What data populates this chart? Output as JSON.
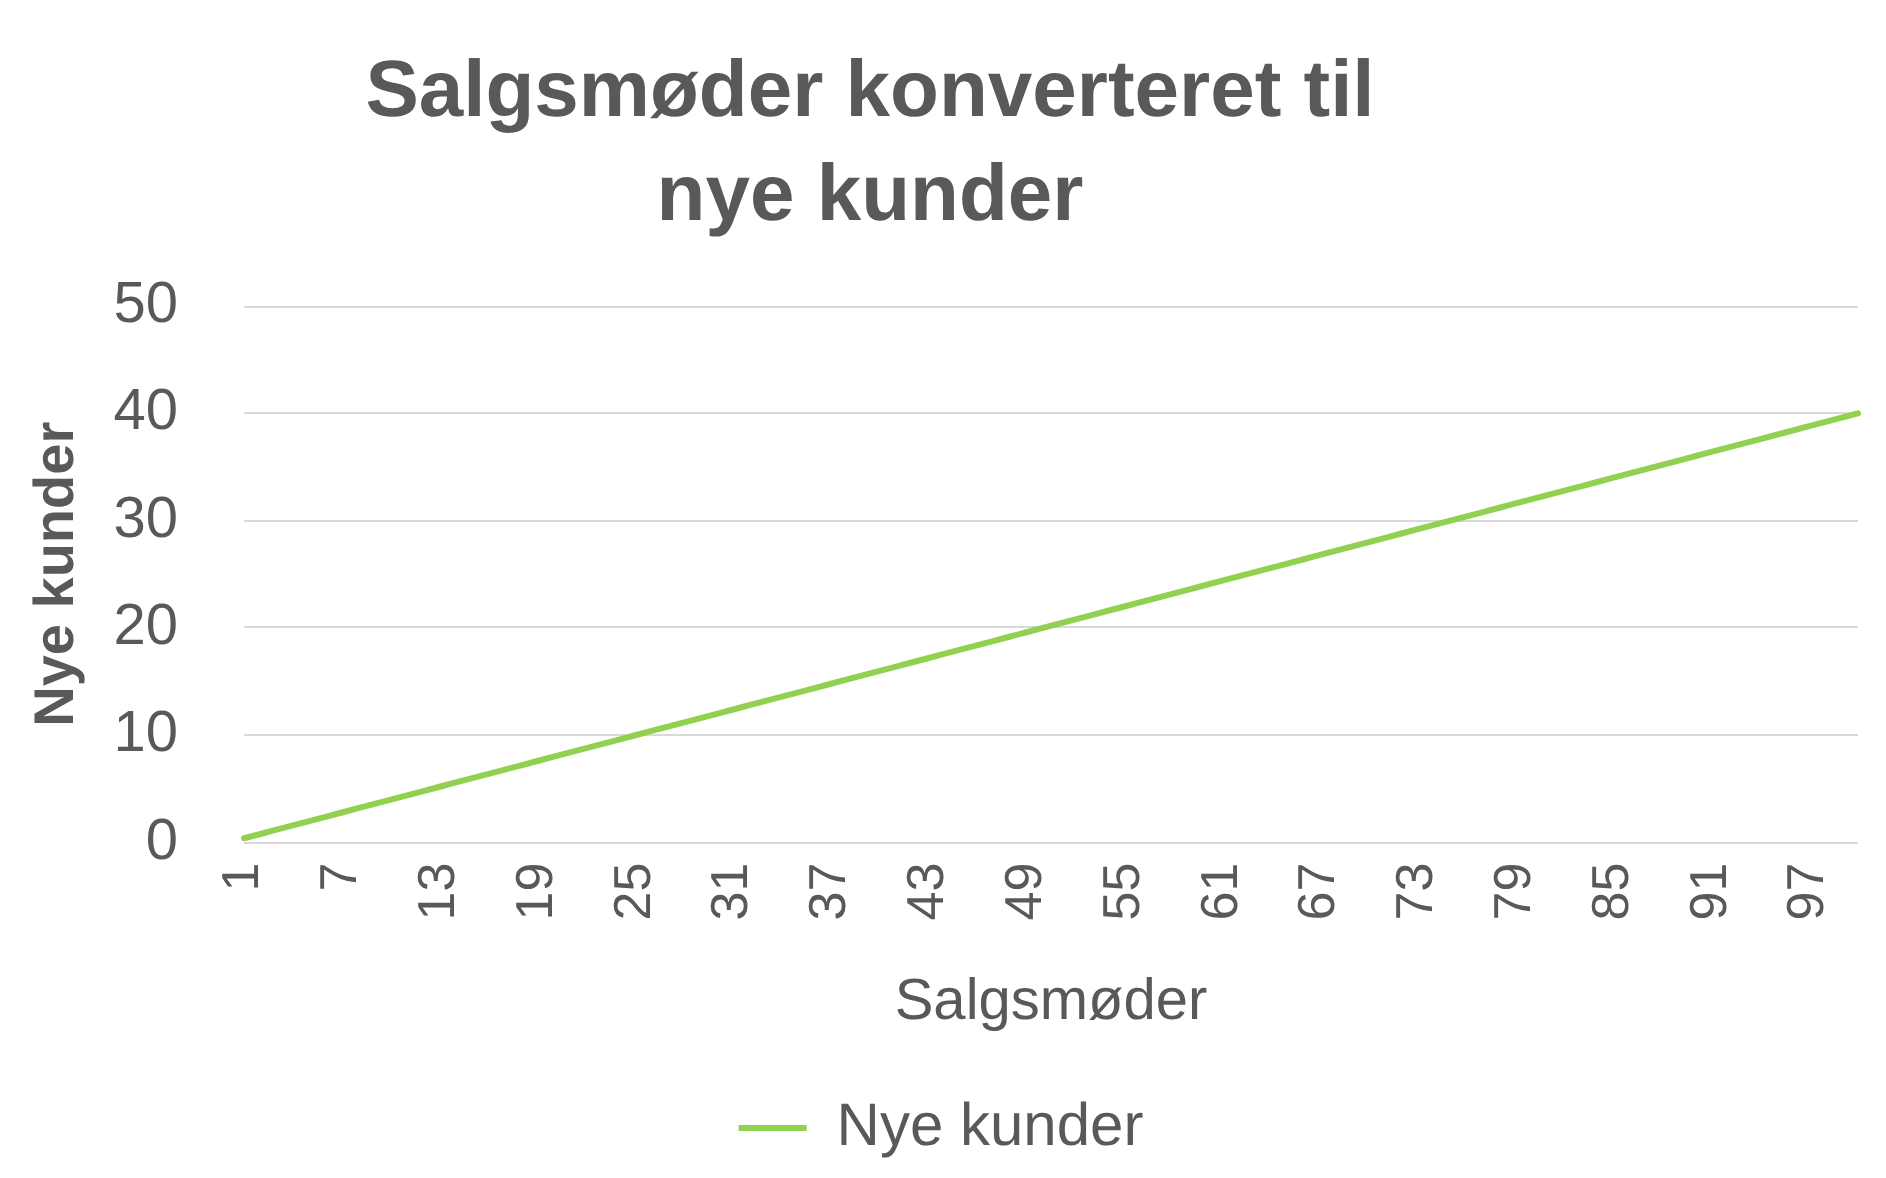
{
  "chart_data": {
    "type": "line",
    "title": "Salgsmøder konverteret til nye kunder",
    "xlabel": "Salgsmøder",
    "ylabel": "Nye kunder",
    "categories": [
      "1",
      null,
      null,
      null,
      null,
      null,
      "7",
      null,
      null,
      null,
      null,
      null,
      "13",
      null,
      null,
      null,
      null,
      null,
      "19",
      null,
      null,
      null,
      null,
      null,
      "25",
      null,
      null,
      null,
      null,
      null,
      "31",
      null,
      null,
      null,
      null,
      null,
      "37",
      null,
      null,
      null,
      null,
      null,
      "43",
      null,
      null,
      null,
      null,
      null,
      "49",
      null,
      null,
      null,
      null,
      null,
      "55",
      null,
      null,
      null,
      null,
      null,
      "61",
      null,
      null,
      null,
      null,
      null,
      "67",
      null,
      null,
      null,
      null,
      null,
      "73",
      null,
      null,
      null,
      null,
      null,
      "79",
      null,
      null,
      null,
      null,
      null,
      "85",
      null,
      null,
      null,
      null,
      null,
      "91",
      null,
      null,
      null,
      null,
      null,
      "97",
      null,
      null,
      null
    ],
    "series": [
      {
        "name": "Nye kunder",
        "color": "#92d050",
        "values": [
          0.4,
          0.8,
          1.2,
          1.6,
          2,
          2.4,
          2.8,
          3.2,
          3.6,
          4,
          4.4,
          4.8,
          5.2,
          5.6,
          6,
          6.4,
          6.8,
          7.2,
          7.6,
          8,
          8.4,
          8.8,
          9.2,
          9.6,
          10,
          10.4,
          10.8,
          11.2,
          11.6,
          12,
          12.4,
          12.8,
          13.2,
          13.6,
          14,
          14.4,
          14.8,
          15.2,
          15.6,
          16,
          16.4,
          16.8,
          17.2,
          17.6,
          18,
          18.4,
          18.8,
          19.2,
          19.6,
          20,
          20.4,
          20.8,
          21.2,
          21.6,
          22,
          22.4,
          22.8,
          23.2,
          23.6,
          24,
          24.4,
          24.8,
          25.2,
          25.6,
          26,
          26.4,
          26.8,
          27.2,
          27.6,
          28,
          28.4,
          28.8,
          29.2,
          29.6,
          30,
          30.4,
          30.8,
          31.2,
          31.6,
          32,
          32.4,
          32.8,
          33.2,
          33.6,
          34,
          34.4,
          34.8,
          35.2,
          35.6,
          36,
          36.4,
          36.8,
          37.2,
          37.6,
          38,
          38.4,
          38.8,
          39.2,
          39.6,
          40
        ]
      }
    ],
    "ylim": [
      0,
      50
    ],
    "yticks": [
      0,
      10,
      20,
      30,
      40,
      50
    ],
    "grid": "y",
    "legend": "bottom",
    "marker": "none",
    "line_style": "solid"
  }
}
